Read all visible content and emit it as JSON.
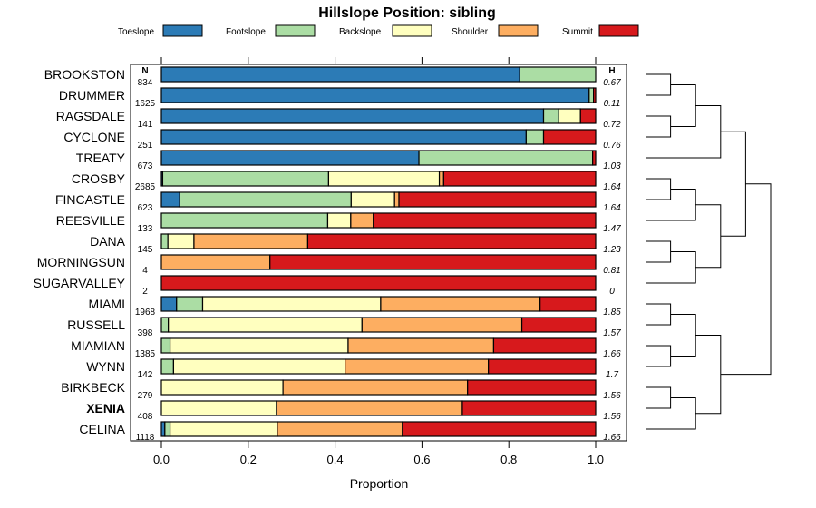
{
  "chart_data": {
    "type": "bar",
    "orientation": "horizontal",
    "stacked": true,
    "title": "Hillslope Position: sibling",
    "xlabel": "Proportion",
    "ylabel": "",
    "xlim": [
      0,
      1
    ],
    "xticks": [
      0.0,
      0.2,
      0.4,
      0.6,
      0.8,
      1.0
    ],
    "xtick_labels": [
      "0.0",
      "0.2",
      "0.4",
      "0.6",
      "0.8",
      "1.0"
    ],
    "n_header": "N",
    "h_header": "H",
    "highlight": "XENIA",
    "legend": [
      {
        "name": "Toeslope",
        "color": "#2c7bb6"
      },
      {
        "name": "Footslope",
        "color": "#abdda4"
      },
      {
        "name": "Backslope",
        "color": "#ffffbf"
      },
      {
        "name": "Shoulder",
        "color": "#fdae61"
      },
      {
        "name": "Summit",
        "color": "#d7191c"
      }
    ],
    "rows": [
      {
        "name": "BROOKSTON",
        "n": "834",
        "h": "0.67",
        "values": [
          0.825,
          0.175,
          0,
          0,
          0
        ]
      },
      {
        "name": "DRUMMER",
        "n": "1625",
        "h": "0.11",
        "values": [
          0.985,
          0.01,
          0,
          0,
          0.005
        ]
      },
      {
        "name": "RAGSDALE",
        "n": "141",
        "h": "0.72",
        "values": [
          0.88,
          0.035,
          0.05,
          0,
          0.035
        ]
      },
      {
        "name": "CYCLONE",
        "n": "251",
        "h": "0.76",
        "values": [
          0.84,
          0.04,
          0,
          0,
          0.12
        ]
      },
      {
        "name": "TREATY",
        "n": "673",
        "h": "1.03",
        "values": [
          0.593,
          0.4,
          0,
          0,
          0.007
        ]
      },
      {
        "name": "CROSBY",
        "n": "2685",
        "h": "1.64",
        "values": [
          0.003,
          0.382,
          0.255,
          0.01,
          0.35
        ]
      },
      {
        "name": "FINCASTLE",
        "n": "623",
        "h": "1.64",
        "values": [
          0.042,
          0.395,
          0.1,
          0.01,
          0.453
        ]
      },
      {
        "name": "REESVILLE",
        "n": "133",
        "h": "1.47",
        "values": [
          0,
          0.383,
          0.053,
          0.052,
          0.512
        ]
      },
      {
        "name": "DANA",
        "n": "145",
        "h": "1.23",
        "values": [
          0,
          0.015,
          0.06,
          0.262,
          0.663
        ]
      },
      {
        "name": "MORNINGSUN",
        "n": "4",
        "h": "0.81",
        "values": [
          0,
          0,
          0,
          0.25,
          0.75
        ]
      },
      {
        "name": "SUGARVALLEY",
        "n": "2",
        "h": "0",
        "values": [
          0,
          0,
          0,
          0,
          1.0
        ]
      },
      {
        "name": "MIAMI",
        "n": "1968",
        "h": "1.85",
        "values": [
          0.035,
          0.06,
          0.41,
          0.367,
          0.128
        ]
      },
      {
        "name": "RUSSELL",
        "n": "398",
        "h": "1.57",
        "values": [
          0,
          0.016,
          0.446,
          0.368,
          0.17
        ]
      },
      {
        "name": "MIAMIAN",
        "n": "1385",
        "h": "1.66",
        "values": [
          0,
          0.02,
          0.41,
          0.335,
          0.235
        ]
      },
      {
        "name": "WYNN",
        "n": "142",
        "h": "1.7",
        "values": [
          0,
          0.028,
          0.395,
          0.33,
          0.247
        ]
      },
      {
        "name": "BIRKBECK",
        "n": "279",
        "h": "1.56",
        "values": [
          0,
          0,
          0.28,
          0.425,
          0.295
        ]
      },
      {
        "name": "XENIA",
        "n": "408",
        "h": "1.56",
        "values": [
          0,
          0,
          0.265,
          0.428,
          0.307
        ]
      },
      {
        "name": "CELINA",
        "n": "1118",
        "h": "1.66",
        "values": [
          0.008,
          0.012,
          0.247,
          0.288,
          0.445
        ]
      }
    ],
    "dendrogram": {
      "left": {
        "left": {
          "left": {
            "left": {
              "left": 0,
              "right": 1
            },
            "right": {
              "left": 2,
              "right": 3
            }
          },
          "right": 4
        },
        "right": {
          "left": {
            "left": {
              "left": 5,
              "right": 6
            },
            "right": 7
          },
          "right": {
            "left": {
              "left": 8,
              "right": 9
            },
            "right": 10
          }
        }
      },
      "right": {
        "left": {
          "left": {
            "left": 11,
            "right": 12
          },
          "right": {
            "left": 13,
            "right": 14
          }
        },
        "right": {
          "left": {
            "left": 15,
            "right": 16
          },
          "right": 17
        }
      }
    }
  }
}
